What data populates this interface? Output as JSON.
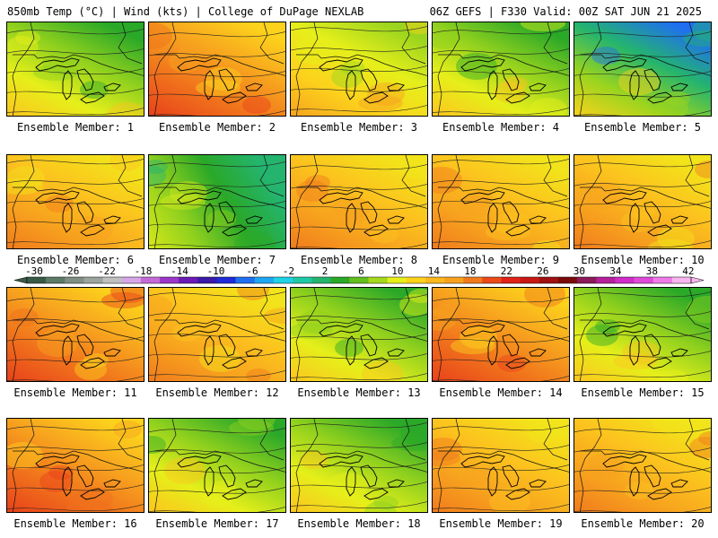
{
  "header": {
    "left": "850mb Temp (°C) | Wind (kts) | College of DuPage NEXLAB",
    "right": "06Z GEFS | F330 Valid: 00Z SAT JUN 21 2025"
  },
  "member_label_prefix": "Ensemble Member:",
  "members": [
    {
      "id": 1,
      "label": "Ensemble Member: 1",
      "palette": "cool"
    },
    {
      "id": 2,
      "label": "Ensemble Member: 2",
      "palette": "hot"
    },
    {
      "id": 3,
      "label": "Ensemble Member: 3",
      "palette": "mild"
    },
    {
      "id": 4,
      "label": "Ensemble Member: 4",
      "palette": "cool"
    },
    {
      "id": 5,
      "label": "Ensemble Member: 5",
      "palette": "cold"
    },
    {
      "id": 6,
      "label": "Ensemble Member: 6",
      "palette": "warm"
    },
    {
      "id": 7,
      "label": "Ensemble Member: 7",
      "palette": "front"
    },
    {
      "id": 8,
      "label": "Ensemble Member: 8",
      "palette": "warm"
    },
    {
      "id": 9,
      "label": "Ensemble Member: 9",
      "palette": "warm"
    },
    {
      "id": 10,
      "label": "Ensemble Member: 10",
      "palette": "warm"
    },
    {
      "id": 11,
      "label": "Ensemble Member: 11",
      "palette": "hot"
    },
    {
      "id": 12,
      "label": "Ensemble Member: 12",
      "palette": "warm"
    },
    {
      "id": 13,
      "label": "Ensemble Member: 13",
      "palette": "cool"
    },
    {
      "id": 14,
      "label": "Ensemble Member: 14",
      "palette": "hot"
    },
    {
      "id": 15,
      "label": "Ensemble Member: 15",
      "palette": "cool"
    },
    {
      "id": 16,
      "label": "Ensemble Member: 16",
      "palette": "hot"
    },
    {
      "id": 17,
      "label": "Ensemble Member: 17",
      "palette": "cool"
    },
    {
      "id": 18,
      "label": "Ensemble Member: 18",
      "palette": "cool"
    },
    {
      "id": 19,
      "label": "Ensemble Member: 19",
      "palette": "warm"
    },
    {
      "id": 20,
      "label": "Ensemble Member: 20",
      "palette": "warm"
    }
  ],
  "palettes": {
    "hot": [
      "#e8401a",
      "#f0701c",
      "#f7a21e",
      "#fcd21c"
    ],
    "warm": [
      "#f07a1c",
      "#f7a21e",
      "#fcc41e",
      "#f2e41a"
    ],
    "mild": [
      "#f7a21e",
      "#fcd21c",
      "#e6ef1a",
      "#9ad41e"
    ],
    "cool": [
      "#fcc41e",
      "#e6ef1a",
      "#8fd01e",
      "#2aa828"
    ],
    "cold": [
      "#fcd21c",
      "#9ad41e",
      "#24b46e",
      "#1f6ff0"
    ],
    "front": [
      "#d8e81a",
      "#8fd01e",
      "#2aa828",
      "#24b46e"
    ]
  },
  "colorbar": {
    "labels": [
      "-30",
      "-26",
      "-22",
      "-18",
      "-14",
      "-10",
      "-6",
      "-2",
      "2",
      "6",
      "10",
      "14",
      "18",
      "22",
      "26",
      "30",
      "34",
      "38",
      "42"
    ],
    "colors": [
      "#3a5a48",
      "#5c7b66",
      "#7f8f85",
      "#9da39f",
      "#c0c0c0",
      "#d7a5e8",
      "#c46ad8",
      "#9c36c8",
      "#6a1ab4",
      "#3a1aa8",
      "#1f2ad8",
      "#1f6ff0",
      "#1fa6f2",
      "#1fd2e6",
      "#1fc8a6",
      "#24b46e",
      "#2aa828",
      "#63be1e",
      "#a6d81e",
      "#e6ef1a",
      "#fcd21c",
      "#fcb81e",
      "#f7a21e",
      "#f07a1c",
      "#ec4a1a",
      "#e02218",
      "#c81814",
      "#a01010",
      "#7a0a0a",
      "#8a1a5a",
      "#b4209a",
      "#d02cc8",
      "#e04ad8",
      "#f07ae8",
      "#f8b6f0"
    ]
  }
}
